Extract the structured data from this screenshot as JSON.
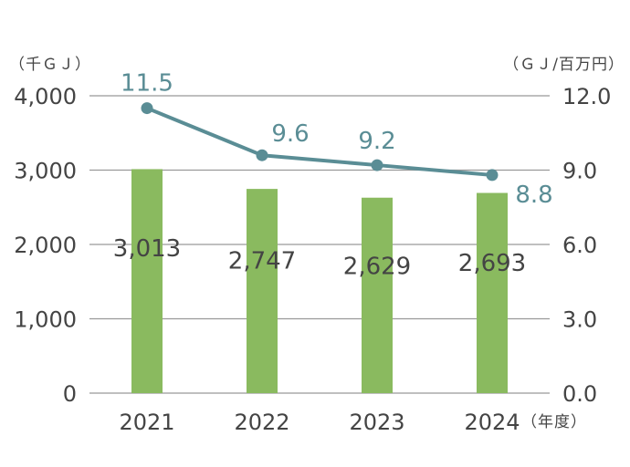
{
  "chart_data": {
    "type": "bar+line",
    "categories": [
      "2021",
      "2022",
      "2023",
      "2024"
    ],
    "series": [
      {
        "name": "energy",
        "type": "bar",
        "axis": "left",
        "values": [
          3013,
          2747,
          2629,
          2693
        ],
        "labels": [
          "3,013",
          "2,747",
          "2,629",
          "2,693"
        ],
        "color": "#8aba5f"
      },
      {
        "name": "intensity",
        "type": "line",
        "axis": "right",
        "values": [
          11.5,
          9.6,
          9.2,
          8.8
        ],
        "labels": [
          "11.5",
          "9.6",
          "9.2",
          "8.8"
        ],
        "color": "#5a8d95"
      }
    ],
    "left_axis": {
      "unit": "（千ＧＪ）",
      "ylim": [
        0,
        4000
      ],
      "ticks": [
        0,
        1000,
        2000,
        3000,
        4000
      ],
      "tick_labels": [
        "0",
        "1,000",
        "2,000",
        "3,000",
        "4,000"
      ]
    },
    "right_axis": {
      "unit": "（ＧＪ/百万円）",
      "ylim": [
        0,
        12
      ],
      "ticks": [
        0,
        3,
        6,
        9,
        12
      ],
      "tick_labels": [
        "0.0",
        "3.0",
        "6.0",
        "9.0",
        "12.0"
      ]
    },
    "x_axis": {
      "unit": "（年度）"
    },
    "grid": true,
    "colors": {
      "grid": "#999999",
      "text": "#444444"
    }
  }
}
